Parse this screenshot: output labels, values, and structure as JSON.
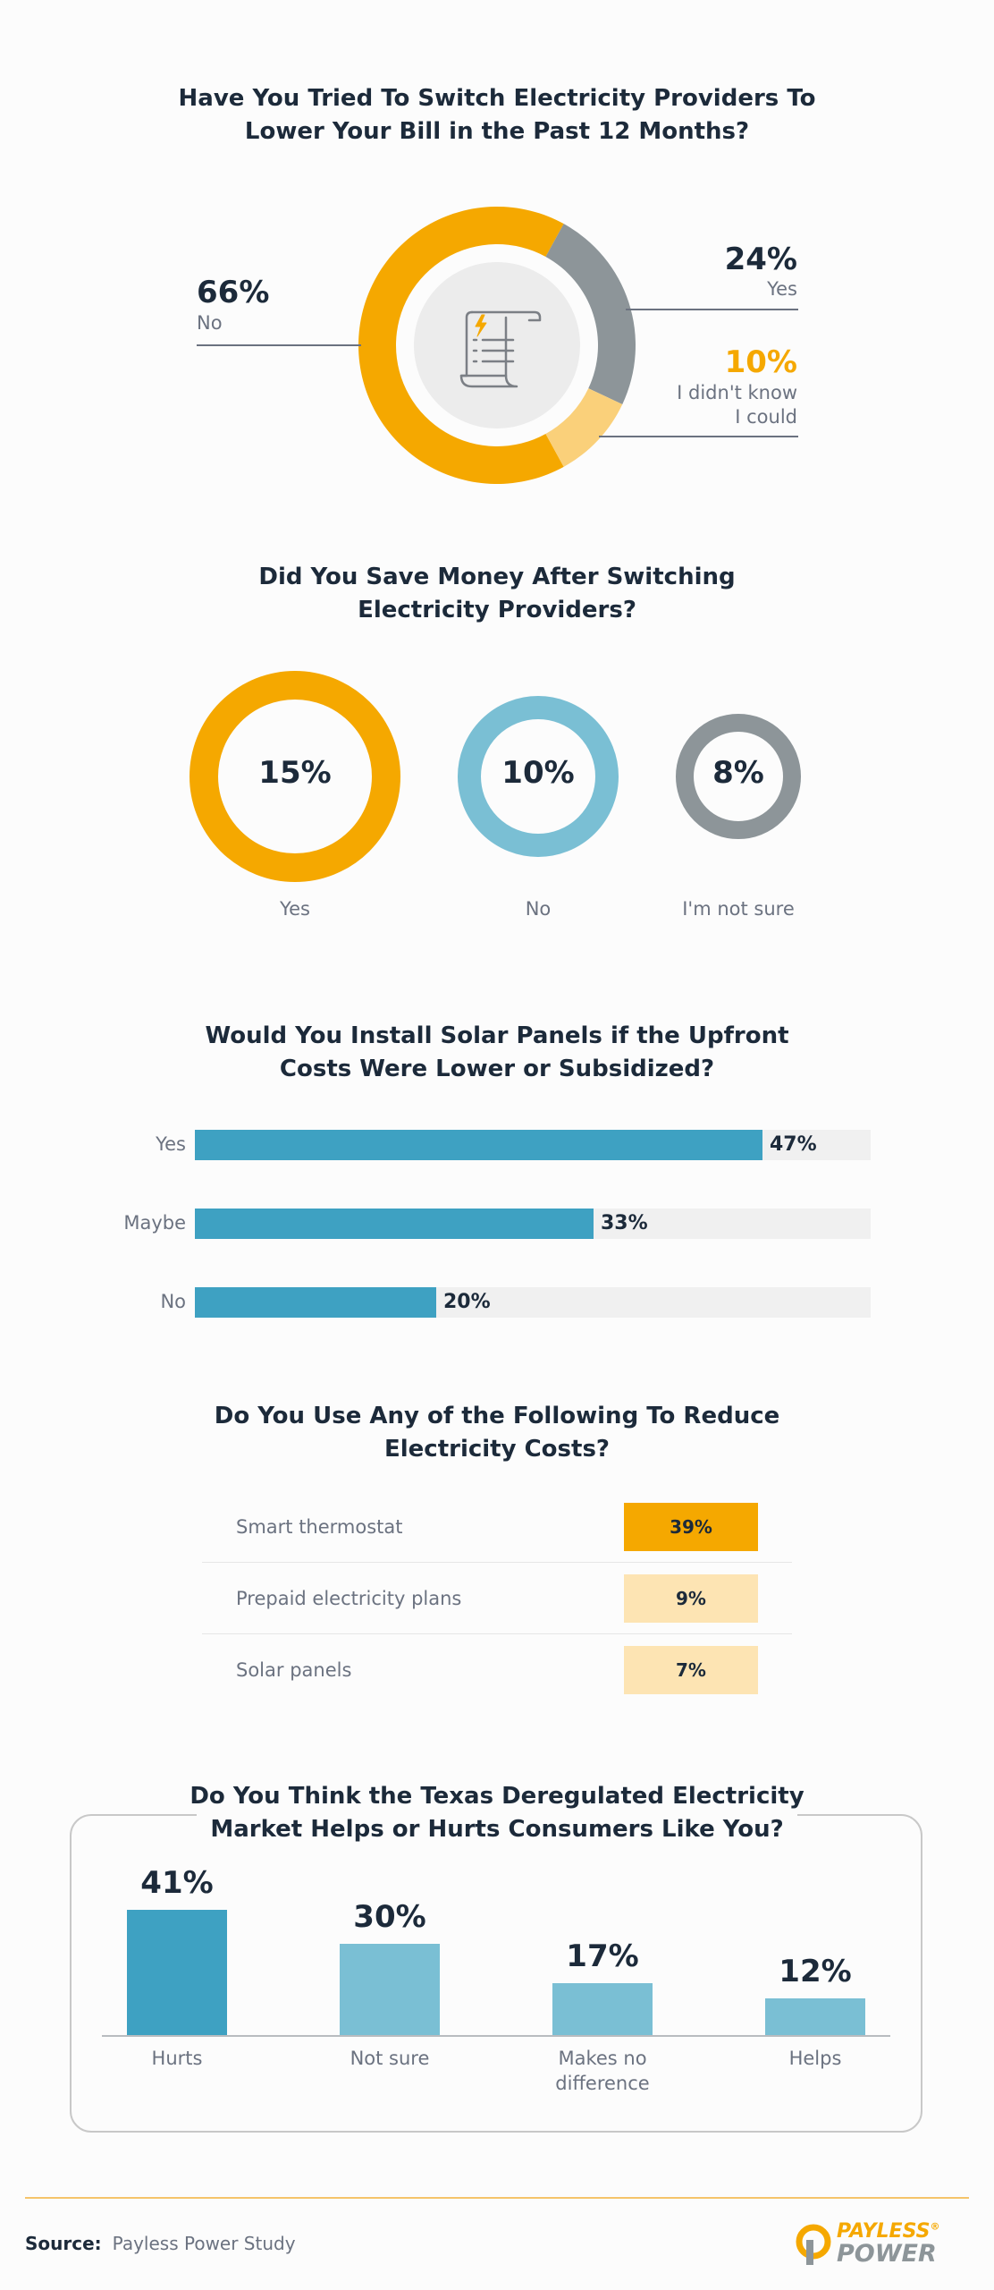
{
  "colors": {
    "orange": "#f5a800",
    "light_orange": "#fad07a",
    "pale_orange": "#fde4b3",
    "gray": "#8d9599",
    "teal": "#3ea1c2",
    "light_teal": "#7abfd4",
    "navy": "#1c2a3a"
  },
  "sections": {
    "switch": {
      "title_line1": "Have You Tried To Switch Electricity Providers To",
      "title_line2": "Lower Your Bill in the Past 12 Months?",
      "icon": "bill-receipt-icon"
    },
    "saved": {
      "title_line1": "Did You Save Money After Switching",
      "title_line2": "Electricity Providers?"
    },
    "solar": {
      "title_line1": "Would You Install Solar Panels if the Upfront",
      "title_line2": "Costs Were Lower or Subsidized?"
    },
    "reduce": {
      "title_line1": "Do You Use Any of the Following To Reduce",
      "title_line2": "Electricity Costs?"
    },
    "market": {
      "title_line1": "Do You Think the Texas Deregulated Electricity",
      "title_line2": "Market Helps or Hurts Consumers Like You?"
    }
  },
  "chart_data": [
    {
      "type": "pie",
      "variant": "donut",
      "title": "Have You Tried To Switch Electricity Providers To Lower Your Bill in the Past 12 Months?",
      "slices": [
        {
          "label": "No",
          "value": 66,
          "display": "66%",
          "color": "#f5a800"
        },
        {
          "label": "Yes",
          "value": 24,
          "display": "24%",
          "color": "#8d9599"
        },
        {
          "label_line1": "I didn't know",
          "label_line2": "I could",
          "value": 10,
          "display": "10%",
          "color": "#fad07a"
        }
      ]
    },
    {
      "type": "pie",
      "variant": "rings",
      "title": "Did You Save Money After Switching Electricity Providers?",
      "items": [
        {
          "label": "Yes",
          "value": 15,
          "display": "15%",
          "color": "#f5a800"
        },
        {
          "label": "No",
          "value": 10,
          "display": "10%",
          "color": "#7abfd4"
        },
        {
          "label": "I'm not sure",
          "value": 8,
          "display": "8%",
          "color": "#8d9599"
        }
      ]
    },
    {
      "type": "bar",
      "orientation": "horizontal",
      "title": "Would You Install Solar Panels if the Upfront Costs Were Lower or Subsidized?",
      "categories": [
        "Yes",
        "Maybe",
        "No"
      ],
      "values": [
        47,
        33,
        20
      ],
      "display": [
        "47%",
        "33%",
        "20%"
      ],
      "xlim": [
        0,
        56
      ],
      "color": "#3ea1c2"
    },
    {
      "type": "table",
      "title": "Do You Use Any of the Following To Reduce Electricity Costs?",
      "rows": [
        {
          "label": "Smart thermostat",
          "value": 39,
          "display": "39%",
          "color": "#f5a800"
        },
        {
          "label": "Prepaid electricity plans",
          "value": 9,
          "display": "9%",
          "color": "#fde4b3"
        },
        {
          "label": "Solar panels",
          "value": 7,
          "display": "7%",
          "color": "#fde4b3"
        }
      ]
    },
    {
      "type": "bar",
      "orientation": "vertical",
      "title": "Do You Think the Texas Deregulated Electricity Market Helps or Hurts Consumers Like You?",
      "categories": [
        {
          "line1": "Hurts",
          "line2": ""
        },
        {
          "line1": "Not sure",
          "line2": ""
        },
        {
          "line1": "Makes no",
          "line2": "difference"
        },
        {
          "line1": "Helps",
          "line2": ""
        }
      ],
      "values": [
        41,
        30,
        17,
        12
      ],
      "display": [
        "41%",
        "30%",
        "17%",
        "12%"
      ],
      "ylim": [
        0,
        41
      ],
      "colors": [
        "#3ea1c2",
        "#7abfd4",
        "#7abfd4",
        "#7abfd4"
      ]
    }
  ],
  "footer": {
    "source_label": "Source:",
    "source_text": "Payless Power Study",
    "logo_line1": "PAYLESS",
    "logo_line2": "POWER",
    "logo_mark": "®"
  }
}
